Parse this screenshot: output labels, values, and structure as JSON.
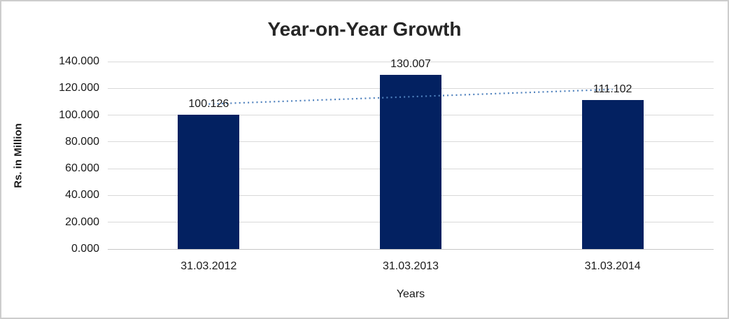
{
  "chart_data": {
    "type": "bar",
    "title": "Year-on-Year Growth",
    "xlabel": "Years",
    "ylabel": "Rs. in Million",
    "categories": [
      "31.03.2012",
      "31.03.2013",
      "31.03.2014"
    ],
    "values": [
      100.126,
      130.007,
      111.102
    ],
    "value_labels": [
      "100.126",
      "130.007",
      "111.102"
    ],
    "ylim": [
      0,
      140
    ],
    "y_ticks": [
      0,
      20,
      40,
      60,
      80,
      100,
      120,
      140
    ],
    "y_tick_labels": [
      "0.000",
      "20.000",
      "40.000",
      "60.000",
      "80.000",
      "100.000",
      "120.000",
      "140.000"
    ],
    "grid": "horizontal-only",
    "legend_position": "none",
    "trendline": {
      "type": "linear",
      "style": "dotted",
      "start_value": 108.3,
      "end_value": 119.2,
      "spans": "first-to-last-category-center"
    }
  },
  "colors": {
    "bar": "#032161",
    "trendline": "#4f81bd",
    "gridline": "#d9d9d9",
    "frame_border": "#cdcdcd",
    "text": "#1a1a1a",
    "title_text": "#262626",
    "background": "#ffffff"
  }
}
